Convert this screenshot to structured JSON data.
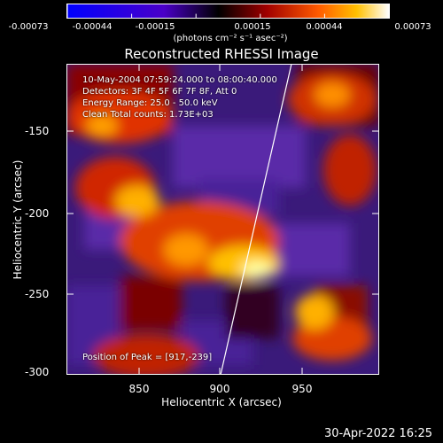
{
  "colorbar": {
    "ticks": [
      "-0.00073",
      "-0.00044",
      "-0.00015",
      "0.00015",
      "0.00044",
      "0.00073"
    ],
    "units": "(photons cm⁻² s⁻¹ asec⁻²)",
    "colormap": [
      "#0000ff",
      "#4a00c8",
      "#000000",
      "#a00000",
      "#ff5a00",
      "#ffc000",
      "#ffffff"
    ]
  },
  "title": "Reconstructed RHESSI Image",
  "info": {
    "time": "10-May-2004 07:59:24.000 to 08:00:40.000",
    "detectors": "Detectors: 3F 4F 5F 6F 7F 8F, Att 0",
    "energy": "Energy Range: 25.0 - 50.0 keV",
    "clean": "Clean    Total counts: 1.73E+03",
    "peak": "Position of Peak = [917,-239]"
  },
  "axes": {
    "xlabel": "Heliocentric X (arcsec)",
    "ylabel": "Heliocentric Y (arcsec)",
    "xticks": [
      "850",
      "900",
      "950"
    ],
    "yticks": [
      "-150",
      "-200",
      "-250",
      "-300"
    ]
  },
  "timestamp": "30-Apr-2022 16:25"
}
